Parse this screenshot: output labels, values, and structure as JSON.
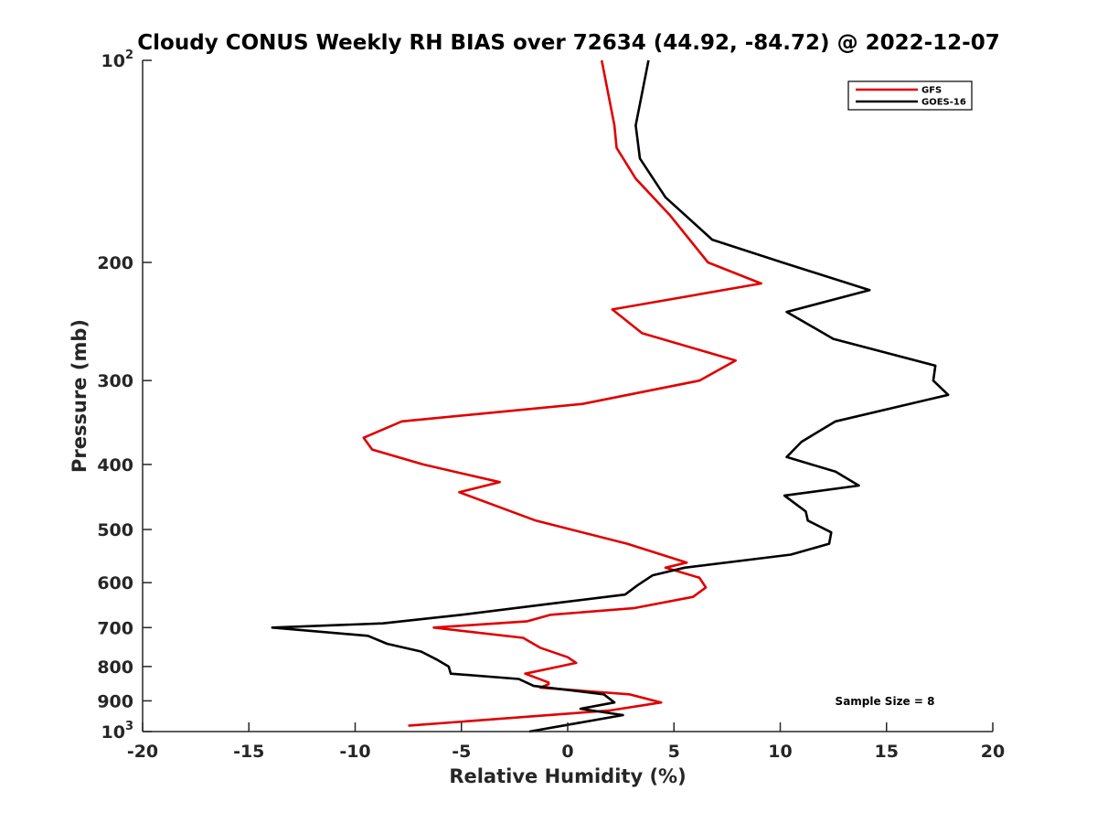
{
  "chart_data": {
    "type": "line",
    "title": "Cloudy CONUS Weekly RH BIAS over 72634 (44.92, -84.72) @ 2022-12-07",
    "xlabel": "Relative Humidity (%)",
    "ylabel": "Pressure (mb)",
    "xlim": [
      -20,
      20
    ],
    "ylim": [
      100,
      1000
    ],
    "y_scale": "log",
    "y_reversed": true,
    "x_ticks": [
      "-20",
      "-15",
      "-10",
      "-5",
      "0",
      "5",
      "10",
      "15",
      "20"
    ],
    "y_ticks": [
      {
        "value": 100,
        "base": "10",
        "exp": "2"
      },
      {
        "value": 200,
        "label": "200"
      },
      {
        "value": 300,
        "label": "300"
      },
      {
        "value": 400,
        "label": "400"
      },
      {
        "value": 500,
        "label": "500"
      },
      {
        "value": 600,
        "label": "600"
      },
      {
        "value": 700,
        "label": "700"
      },
      {
        "value": 800,
        "label": "800"
      },
      {
        "value": 900,
        "label": "900"
      },
      {
        "value": 1000,
        "base": "10",
        "exp": "3"
      }
    ],
    "legend_position": "top-right",
    "grid": false,
    "annotation": "Sample Size = 8",
    "series": [
      {
        "name": "GFS",
        "color": "#e00000",
        "points": [
          [
            1.6,
            100
          ],
          [
            2.2,
            125
          ],
          [
            2.3,
            135
          ],
          [
            3.2,
            150
          ],
          [
            4.8,
            170
          ],
          [
            6.6,
            200
          ],
          [
            9.1,
            215
          ],
          [
            2.1,
            235
          ],
          [
            3.5,
            255
          ],
          [
            7.9,
            280
          ],
          [
            6.2,
            300
          ],
          [
            0.7,
            325
          ],
          [
            -7.8,
            345
          ],
          [
            -9.6,
            365
          ],
          [
            -9.2,
            380
          ],
          [
            -6.8,
            400
          ],
          [
            -3.2,
            425
          ],
          [
            -5.1,
            440
          ],
          [
            -1.5,
            485
          ],
          [
            2.8,
            525
          ],
          [
            5.6,
            560
          ],
          [
            4.6,
            570
          ],
          [
            6.2,
            590
          ],
          [
            6.5,
            610
          ],
          [
            5.9,
            630
          ],
          [
            3.1,
            655
          ],
          [
            -0.8,
            670
          ],
          [
            -1.9,
            685
          ],
          [
            -6.3,
            700
          ],
          [
            -2.1,
            725
          ],
          [
            -1.3,
            750
          ],
          [
            0.0,
            775
          ],
          [
            0.4,
            790
          ],
          [
            -0.4,
            800
          ],
          [
            -2.0,
            820
          ],
          [
            -0.9,
            845
          ],
          [
            -0.9,
            850
          ],
          [
            -1.3,
            860
          ],
          [
            2.9,
            880
          ],
          [
            4.4,
            905
          ],
          [
            2.0,
            930
          ],
          [
            -7.5,
            980
          ]
        ]
      },
      {
        "name": "GOES-16",
        "color": "#000000",
        "points": [
          [
            3.8,
            100
          ],
          [
            3.2,
            125
          ],
          [
            3.4,
            140
          ],
          [
            4.6,
            160
          ],
          [
            6.8,
            185
          ],
          [
            10.1,
            200
          ],
          [
            14.2,
            220
          ],
          [
            10.3,
            237
          ],
          [
            12.5,
            260
          ],
          [
            17.3,
            285
          ],
          [
            17.2,
            300
          ],
          [
            17.9,
            315
          ],
          [
            12.6,
            345
          ],
          [
            11.0,
            370
          ],
          [
            10.3,
            390
          ],
          [
            12.6,
            410
          ],
          [
            13.7,
            430
          ],
          [
            10.2,
            445
          ],
          [
            11.2,
            470
          ],
          [
            11.3,
            485
          ],
          [
            12.4,
            505
          ],
          [
            12.3,
            525
          ],
          [
            10.5,
            545
          ],
          [
            5.5,
            570
          ],
          [
            4.0,
            585
          ],
          [
            3.3,
            605
          ],
          [
            2.7,
            625
          ],
          [
            -0.8,
            645
          ],
          [
            -5.0,
            670
          ],
          [
            -8.7,
            690
          ],
          [
            -13.9,
            700
          ],
          [
            -9.4,
            720
          ],
          [
            -8.5,
            740
          ],
          [
            -6.9,
            760
          ],
          [
            -6.2,
            780
          ],
          [
            -5.6,
            800
          ],
          [
            -5.5,
            820
          ],
          [
            -2.3,
            835
          ],
          [
            -1.6,
            855
          ],
          [
            1.7,
            880
          ],
          [
            2.2,
            905
          ],
          [
            0.6,
            925
          ],
          [
            2.6,
            945
          ],
          [
            -1.8,
            1000
          ]
        ]
      }
    ]
  }
}
